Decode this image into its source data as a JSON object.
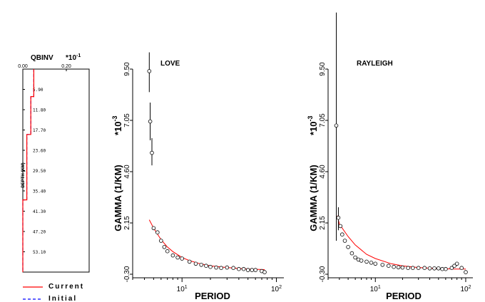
{
  "chart_data": [
    {
      "type": "line",
      "panel": "qbinv",
      "title": "QBINV",
      "multiplier": "*10",
      "multiplier_exp": "-1",
      "xlabel": "",
      "ylabel": "DEPTH (KM)",
      "x_ticks": [
        "0.00",
        "0.20"
      ],
      "y_ticks": [
        "5.90",
        "11.80",
        "17.70",
        "23.60",
        "29.50",
        "35.40",
        "41.30",
        "47.20",
        "53.10"
      ],
      "xlim": [
        0,
        0.5
      ],
      "ylim": [
        0,
        59
      ],
      "series": [
        {
          "name": "Current",
          "color": "#ff0000",
          "values": [
            [
              0.083,
              0
            ],
            [
              0.083,
              8
            ],
            [
              0.06,
              8
            ],
            [
              0.06,
              19
            ],
            [
              0.03,
              19
            ],
            [
              0.03,
              38
            ],
            [
              0.0,
              38
            ],
            [
              0.0,
              59
            ]
          ]
        },
        {
          "name": "Initial",
          "color": "#0000ff",
          "values": [
            [
              0.083,
              0
            ],
            [
              0.083,
              8
            ],
            [
              0.06,
              8
            ],
            [
              0.06,
              19
            ],
            [
              0.03,
              19
            ],
            [
              0.03,
              38
            ],
            [
              0.0,
              38
            ],
            [
              0.0,
              59
            ]
          ]
        }
      ],
      "legend": [
        "Current",
        "Initial"
      ]
    },
    {
      "type": "scatter",
      "panel": "love",
      "title": "LOVE",
      "xlabel": "PERIOD",
      "ylabel": "GAMMA (1/KM)",
      "y_multiplier": "*10",
      "y_multiplier_exp": "-3",
      "x_scale": "log",
      "xlim": [
        3,
        120
      ],
      "ylim": [
        -0.3,
        9.5
      ],
      "y_ticks": [
        "-0.30",
        "2.15",
        "4.60",
        "7.05",
        "9.50"
      ],
      "x_ticks": [
        "10",
        "10"
      ],
      "x_tick_exps": [
        "1",
        "2"
      ],
      "observed": [
        [
          4.5,
          9.4
        ],
        [
          4.6,
          7.0
        ],
        [
          4.8,
          5.5
        ],
        [
          5.0,
          1.9
        ],
        [
          5.5,
          1.7
        ],
        [
          6.0,
          1.3
        ],
        [
          6.5,
          1.0
        ],
        [
          7.0,
          0.8
        ],
        [
          8.0,
          0.6
        ],
        [
          9.0,
          0.5
        ],
        [
          10,
          0.45
        ],
        [
          12,
          0.3
        ],
        [
          14,
          0.2
        ],
        [
          16,
          0.15
        ],
        [
          18,
          0.1
        ],
        [
          20,
          0.05
        ],
        [
          23,
          0.02
        ],
        [
          26,
          0.0
        ],
        [
          30,
          0.02
        ],
        [
          35,
          0.0
        ],
        [
          40,
          -0.05
        ],
        [
          45,
          -0.05
        ],
        [
          50,
          -0.1
        ],
        [
          55,
          -0.1
        ],
        [
          60,
          -0.1
        ],
        [
          70,
          -0.15
        ],
        [
          75,
          -0.2
        ]
      ],
      "error_bars": [
        [
          4.5,
          8.4,
          10.3
        ],
        [
          4.6,
          6.1,
          7.9
        ],
        [
          4.8,
          4.9,
          6.2
        ]
      ],
      "predicted": [
        [
          4.5,
          2.3
        ],
        [
          5,
          1.9
        ],
        [
          6,
          1.35
        ],
        [
          7,
          1.0
        ],
        [
          8,
          0.78
        ],
        [
          10,
          0.5
        ],
        [
          12,
          0.35
        ],
        [
          15,
          0.22
        ],
        [
          20,
          0.1
        ],
        [
          30,
          0.02
        ],
        [
          50,
          -0.05
        ],
        [
          75,
          -0.08
        ]
      ],
      "predicted_color": "#ff0000"
    },
    {
      "type": "scatter",
      "panel": "rayleigh",
      "title": "RAYLEIGH",
      "xlabel": "PERIOD",
      "ylabel": "GAMMA (1/KM)",
      "y_multiplier": "*10",
      "y_multiplier_exp": "-3",
      "x_scale": "log",
      "xlim": [
        3,
        120
      ],
      "ylim": [
        -0.3,
        9.5
      ],
      "y_ticks": [
        "-0.30",
        "2.15",
        "4.60",
        "7.05",
        "9.50"
      ],
      "x_ticks": [
        "10",
        "10"
      ],
      "x_tick_exps": [
        "1",
        "2"
      ],
      "observed": [
        [
          3.7,
          6.8
        ],
        [
          3.9,
          2.4
        ],
        [
          4.1,
          2.0
        ],
        [
          4.3,
          1.6
        ],
        [
          4.6,
          1.3
        ],
        [
          5.0,
          1.0
        ],
        [
          5.5,
          0.7
        ],
        [
          6.0,
          0.5
        ],
        [
          6.5,
          0.4
        ],
        [
          7.0,
          0.35
        ],
        [
          8,
          0.3
        ],
        [
          9,
          0.25
        ],
        [
          10,
          0.2
        ],
        [
          12,
          0.15
        ],
        [
          14,
          0.1
        ],
        [
          16,
          0.05
        ],
        [
          18,
          0.03
        ],
        [
          20,
          0.02
        ],
        [
          23,
          0.0
        ],
        [
          26,
          0.0
        ],
        [
          30,
          0.0
        ],
        [
          35,
          0.0
        ],
        [
          40,
          -0.02
        ],
        [
          45,
          -0.02
        ],
        [
          50,
          -0.02
        ],
        [
          55,
          -0.05
        ],
        [
          60,
          -0.05
        ],
        [
          70,
          0.0
        ],
        [
          75,
          0.1
        ],
        [
          80,
          0.2
        ],
        [
          90,
          0.0
        ],
        [
          100,
          -0.2
        ]
      ],
      "error_bars": [
        [
          3.7,
          1.3,
          12.2
        ],
        [
          3.9,
          1.8,
          2.9
        ]
      ],
      "predicted": [
        [
          3.8,
          2.5
        ],
        [
          4,
          2.1
        ],
        [
          5,
          1.5
        ],
        [
          6,
          1.1
        ],
        [
          8,
          0.65
        ],
        [
          10,
          0.45
        ],
        [
          15,
          0.2
        ],
        [
          20,
          0.1
        ],
        [
          30,
          0.02
        ],
        [
          50,
          -0.03
        ],
        [
          80,
          -0.05
        ],
        [
          100,
          -0.05
        ]
      ],
      "predicted_color": "#ff0000"
    }
  ]
}
